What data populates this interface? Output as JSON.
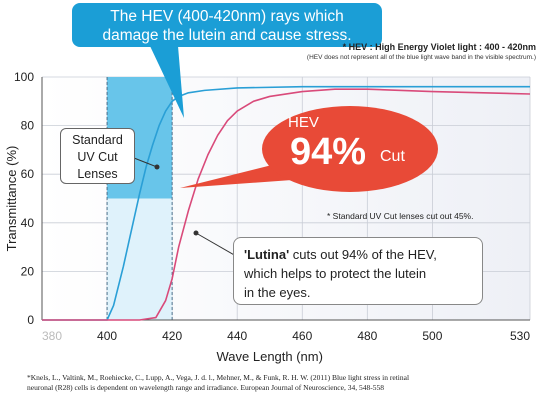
{
  "chart_data": {
    "type": "line",
    "xlabel": "Wave Length (nm)",
    "ylabel": "Transmittance (%)",
    "xlim": [
      380,
      530
    ],
    "ylim": [
      0,
      100
    ],
    "x_ticks": [
      "380",
      "400",
      "420",
      "440",
      "460",
      "480",
      "500",
      "530"
    ],
    "y_ticks": [
      "0",
      "20",
      "40",
      "60",
      "80",
      "100"
    ],
    "highlight_band": {
      "from": 400,
      "to": 420,
      "label": "HEV"
    },
    "series": [
      {
        "name": "Standard UV Cut Lenses",
        "color": "#2a9fd6",
        "x": [
          380,
          400,
          402,
          405,
          408,
          410,
          412,
          414,
          416,
          418,
          420,
          422,
          425,
          430,
          440,
          460,
          480,
          500,
          530
        ],
        "y": [
          0,
          0,
          6,
          22,
          40,
          52,
          63,
          72,
          80,
          86,
          90,
          92,
          93.5,
          94.5,
          95.5,
          96,
          96,
          96,
          96
        ]
      },
      {
        "name": "Lutina",
        "color": "#d94a7a",
        "x": [
          380,
          400,
          410,
          415,
          418,
          420,
          422,
          425,
          428,
          431,
          434,
          437,
          440,
          445,
          450,
          460,
          470,
          480,
          500,
          530
        ],
        "y": [
          0,
          0,
          0,
          1,
          8,
          17,
          30,
          45,
          58,
          68,
          76,
          82,
          86,
          90,
          92,
          94,
          95,
          95,
          94,
          93
        ]
      }
    ]
  },
  "callout_top": {
    "line1": "The HEV (400-420nm) rays which",
    "line2": "damage the lutein and cause stress."
  },
  "note": {
    "line1": "* HEV : High Energy Violet light : 400 - 420nm",
    "line2": "(HEV does not represent all of the blue light wave band in the visible spectrum.)"
  },
  "standard_box": {
    "line1": "Standard",
    "line2": "UV Cut",
    "line3": "Lenses"
  },
  "hev_bubble": {
    "label": "HEV",
    "value": "94%",
    "suffix": "Cut"
  },
  "std_note": "* Standard UV Cut lenses cut out 45%.",
  "lutina_box": {
    "brand": "'Lutina'",
    "line1_rest": " cuts out 94% of the HEV,",
    "line2": "which helps to protect the lutein",
    "line3": "in the eyes."
  },
  "reference": {
    "line1": "*Knels, L., Valtink, M., Roehiecke, C., Lupp, A., Vega, J. d. l., Mehner, M., & Funk, R. H. W. (2011) Blue light stress in retinal",
    "line2": "neuronal (R28) cells is dependent on wavelength range and irradiance. European Journal of Neuroscience, 34, 548-558"
  },
  "colors": {
    "band": "#5bc0e8",
    "band_light": "#dff2fb",
    "bubble": "#e84a37",
    "callout": "#1b9ed6"
  }
}
